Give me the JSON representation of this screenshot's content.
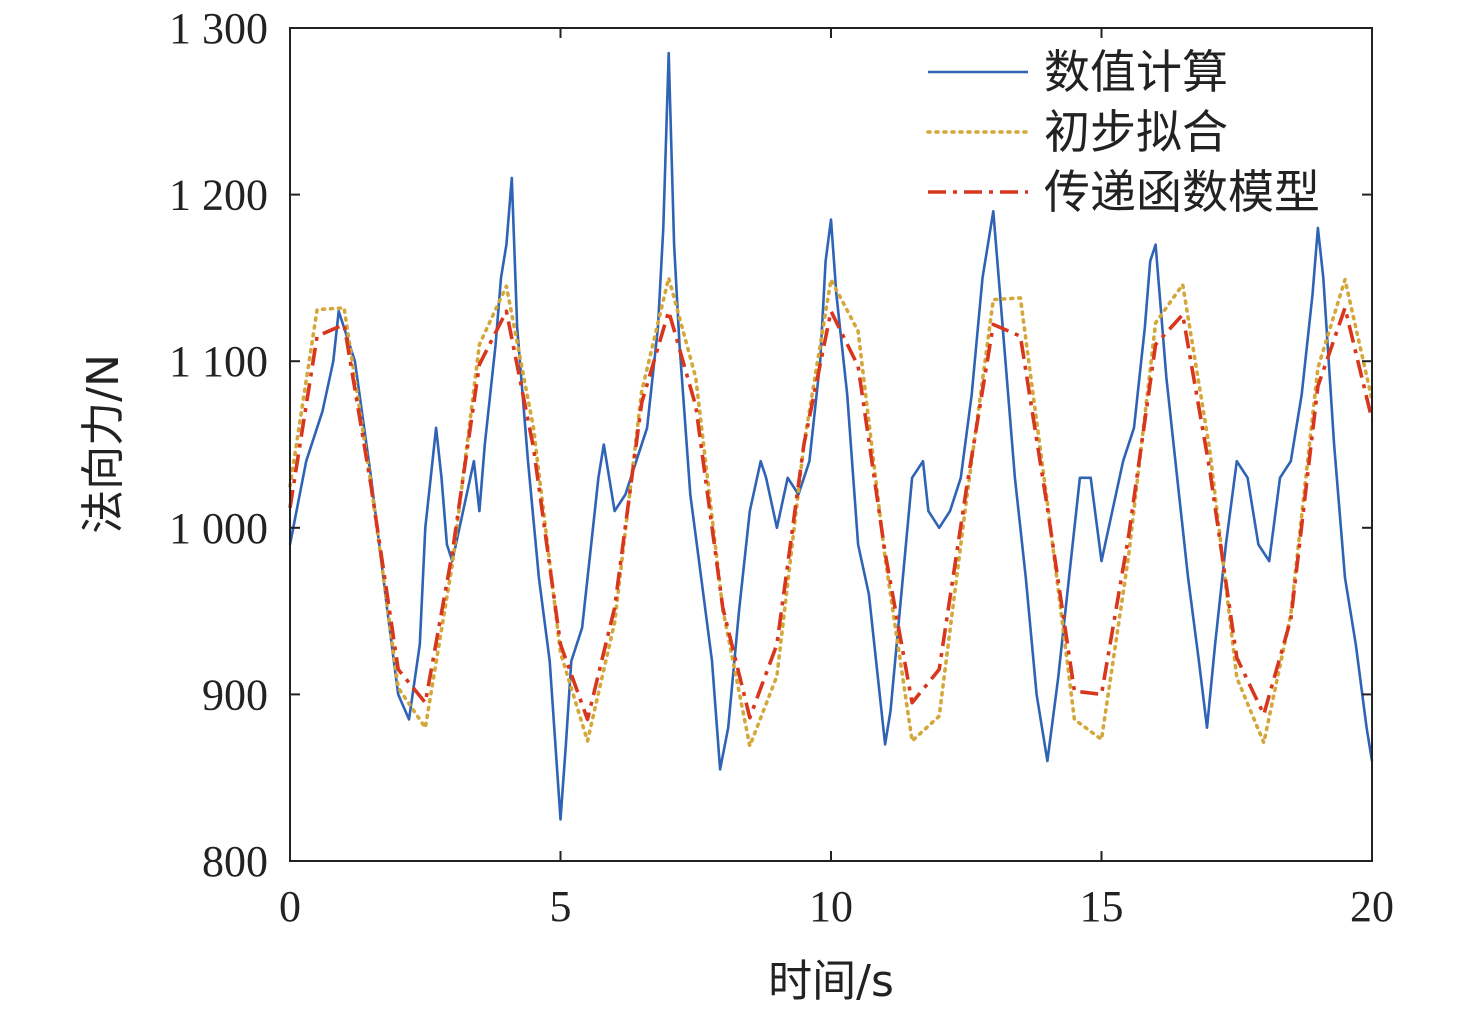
{
  "chart_data": {
    "type": "line",
    "title": "",
    "xlabel": "时间/s",
    "ylabel": "法向力/N",
    "xlim": [
      0,
      20
    ],
    "ylim": [
      800,
      1300
    ],
    "x_ticks": [
      0,
      5,
      10,
      15,
      20
    ],
    "x_tick_labels": [
      "0",
      "5",
      "10",
      "15",
      "20"
    ],
    "y_ticks": [
      800,
      900,
      1000,
      1100,
      1200,
      1300
    ],
    "y_tick_labels": [
      "800",
      "900",
      "1 000",
      "1 100",
      "1 200",
      "1 300"
    ],
    "grid": false,
    "legend_position": "top-right",
    "series": [
      {
        "name": "数值计算",
        "style": "solid",
        "color": "#2f63b6",
        "x": [
          0,
          0.3,
          0.6,
          0.8,
          0.9,
          1.2,
          1.5,
          1.8,
          2.0,
          2.2,
          2.4,
          2.5,
          2.6,
          2.7,
          2.8,
          2.9,
          3.0,
          3.2,
          3.4,
          3.5,
          3.6,
          3.7,
          3.8,
          3.9,
          4.0,
          4.1,
          4.2,
          4.4,
          4.6,
          4.8,
          5.0,
          5.1,
          5.2,
          5.4,
          5.6,
          5.7,
          5.8,
          6.0,
          6.2,
          6.4,
          6.6,
          6.8,
          6.9,
          7.0,
          7.1,
          7.2,
          7.4,
          7.6,
          7.8,
          7.95,
          8.1,
          8.3,
          8.5,
          8.7,
          8.8,
          9.0,
          9.2,
          9.4,
          9.6,
          9.8,
          9.9,
          10.0,
          10.1,
          10.3,
          10.5,
          10.7,
          10.9,
          11.0,
          11.1,
          11.3,
          11.5,
          11.7,
          11.8,
          12.0,
          12.2,
          12.4,
          12.6,
          12.8,
          12.9,
          13.0,
          13.2,
          13.4,
          13.6,
          13.8,
          14.0,
          14.2,
          14.4,
          14.6,
          14.8,
          15.0,
          15.2,
          15.4,
          15.6,
          15.8,
          15.9,
          16.0,
          16.2,
          16.4,
          16.6,
          16.8,
          16.95,
          17.1,
          17.3,
          17.5,
          17.7,
          17.9,
          18.1,
          18.3,
          18.5,
          18.7,
          18.9,
          19.0,
          19.1,
          19.3,
          19.5,
          19.7,
          19.9,
          20.0
        ],
        "y": [
          990,
          1040,
          1070,
          1100,
          1130,
          1100,
          1030,
          950,
          900,
          885,
          930,
          1000,
          1030,
          1060,
          1030,
          990,
          980,
          1010,
          1040,
          1010,
          1050,
          1080,
          1110,
          1150,
          1170,
          1210,
          1120,
          1040,
          970,
          920,
          825,
          870,
          920,
          940,
          1000,
          1030,
          1050,
          1010,
          1020,
          1040,
          1060,
          1120,
          1180,
          1285,
          1170,
          1110,
          1020,
          970,
          920,
          855,
          880,
          950,
          1010,
          1040,
          1030,
          1000,
          1030,
          1020,
          1040,
          1100,
          1160,
          1185,
          1140,
          1080,
          990,
          960,
          900,
          870,
          890,
          960,
          1030,
          1040,
          1010,
          1000,
          1010,
          1030,
          1080,
          1150,
          1170,
          1190,
          1110,
          1030,
          970,
          900,
          860,
          910,
          970,
          1030,
          1030,
          980,
          1010,
          1040,
          1060,
          1120,
          1160,
          1170,
          1090,
          1030,
          970,
          920,
          880,
          930,
          990,
          1040,
          1030,
          990,
          980,
          1030,
          1040,
          1080,
          1140,
          1180,
          1150,
          1050,
          970,
          930,
          880,
          860
        ]
      },
      {
        "name": "初步拟合",
        "style": "dotted",
        "color": "#d4a73a",
        "x": [
          0,
          0.5,
          1.0,
          1.5,
          2.0,
          2.5,
          3.0,
          3.5,
          4.0,
          4.5,
          5.0,
          5.5,
          6.0,
          6.5,
          7.0,
          7.5,
          8.0,
          8.5,
          9.0,
          9.5,
          10.0,
          10.5,
          11.0,
          11.5,
          12.0,
          12.5,
          13.0,
          13.5,
          14.0,
          14.5,
          15.0,
          15.5,
          16.0,
          16.5,
          17.0,
          17.5,
          18.0,
          18.5,
          19.0,
          19.5,
          20.0
        ],
        "y": [
          1025,
          1131,
          1132,
          1026,
          904,
          880,
          978,
          1110,
          1145,
          1060,
          925,
          872,
          943,
          1082,
          1150,
          1090,
          951,
          869,
          911,
          1050,
          1149,
          1118,
          982,
          872,
          887,
          1016,
          1137,
          1138,
          1015,
          885,
          873,
          983,
          1123,
          1146,
          1047,
          910,
          871,
          948,
          1096,
          1149,
          1077
        ]
      },
      {
        "name": "传递函数模型",
        "style": "dashdot",
        "color": "#d9361e",
        "x": [
          0,
          0.5,
          1.0,
          1.5,
          2.0,
          2.5,
          3.0,
          3.5,
          4.0,
          4.5,
          5.0,
          5.5,
          6.0,
          6.5,
          7.0,
          7.5,
          8.0,
          8.5,
          9.0,
          9.5,
          10.0,
          10.5,
          11.0,
          11.5,
          12.0,
          12.5,
          13.0,
          13.5,
          14.0,
          14.5,
          15.0,
          15.5,
          16.0,
          16.5,
          17.0,
          17.5,
          18.0,
          18.5,
          19.0,
          19.5,
          20.0
        ],
        "y": [
          1012,
          1115,
          1122,
          1025,
          915,
          895,
          985,
          1098,
          1130,
          1048,
          930,
          885,
          952,
          1075,
          1130,
          1073,
          952,
          886,
          930,
          1050,
          1130,
          1097,
          985,
          895,
          915,
          1023,
          1122,
          1115,
          1012,
          902,
          900,
          995,
          1110,
          1128,
          1035,
          922,
          888,
          945,
          1085,
          1132,
          1065
        ]
      }
    ]
  }
}
